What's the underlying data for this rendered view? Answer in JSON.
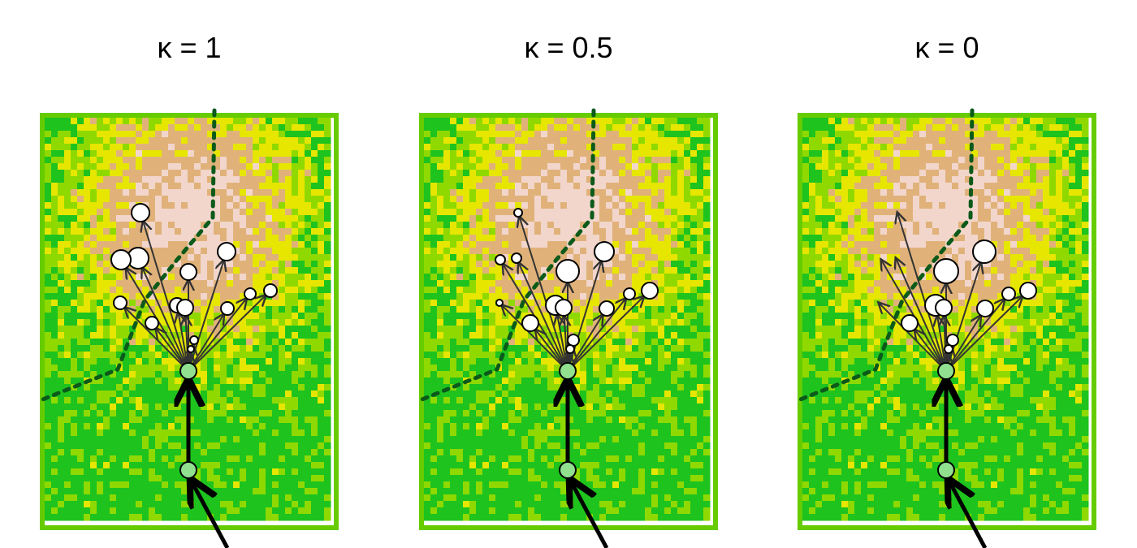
{
  "panels": [
    {
      "title": "κ = 1",
      "path_points": [
        {
          "name": "current-location",
          "role": "now"
        },
        {
          "name": "previous-location",
          "role": "previous"
        }
      ],
      "candidates": [
        {
          "r": 11,
          "len": 1
        },
        {
          "r": 13,
          "len": 1
        },
        {
          "r": 12,
          "len": 1
        },
        {
          "r": 10,
          "len": 1
        },
        {
          "r": 11,
          "len": 1
        },
        {
          "r": 8,
          "len": 1
        },
        {
          "r": 8,
          "len": 1
        },
        {
          "r": 9,
          "len": 1
        },
        {
          "r": 10,
          "len": 1
        },
        {
          "r": 8,
          "len": 1
        },
        {
          "r": 7,
          "len": 1
        },
        {
          "r": 8,
          "len": 1
        },
        {
          "r": 5,
          "len": 1
        },
        {
          "r": 4,
          "len": 1
        }
      ]
    },
    {
      "title": "κ = 0.5",
      "path_points": [
        {
          "name": "current-location",
          "role": "now"
        },
        {
          "name": "previous-location",
          "role": "previous"
        }
      ],
      "candidates": []
    },
    {
      "title": "κ = 0",
      "path_points": [
        {
          "name": "current-location",
          "role": "now"
        },
        {
          "name": "previous-location",
          "role": "previous"
        }
      ],
      "candidates": []
    }
  ],
  "colors": {
    "green_high": "#1ec31e",
    "yellow": "#e6e600",
    "tan": "#e0b27a",
    "pink_light": "#f2d6cc",
    "frame": "#66cc00",
    "boundary": "#0b5a1a",
    "node_fill": "#ffffff",
    "path_node_fill": "#90e090",
    "arrow": "#333333"
  }
}
